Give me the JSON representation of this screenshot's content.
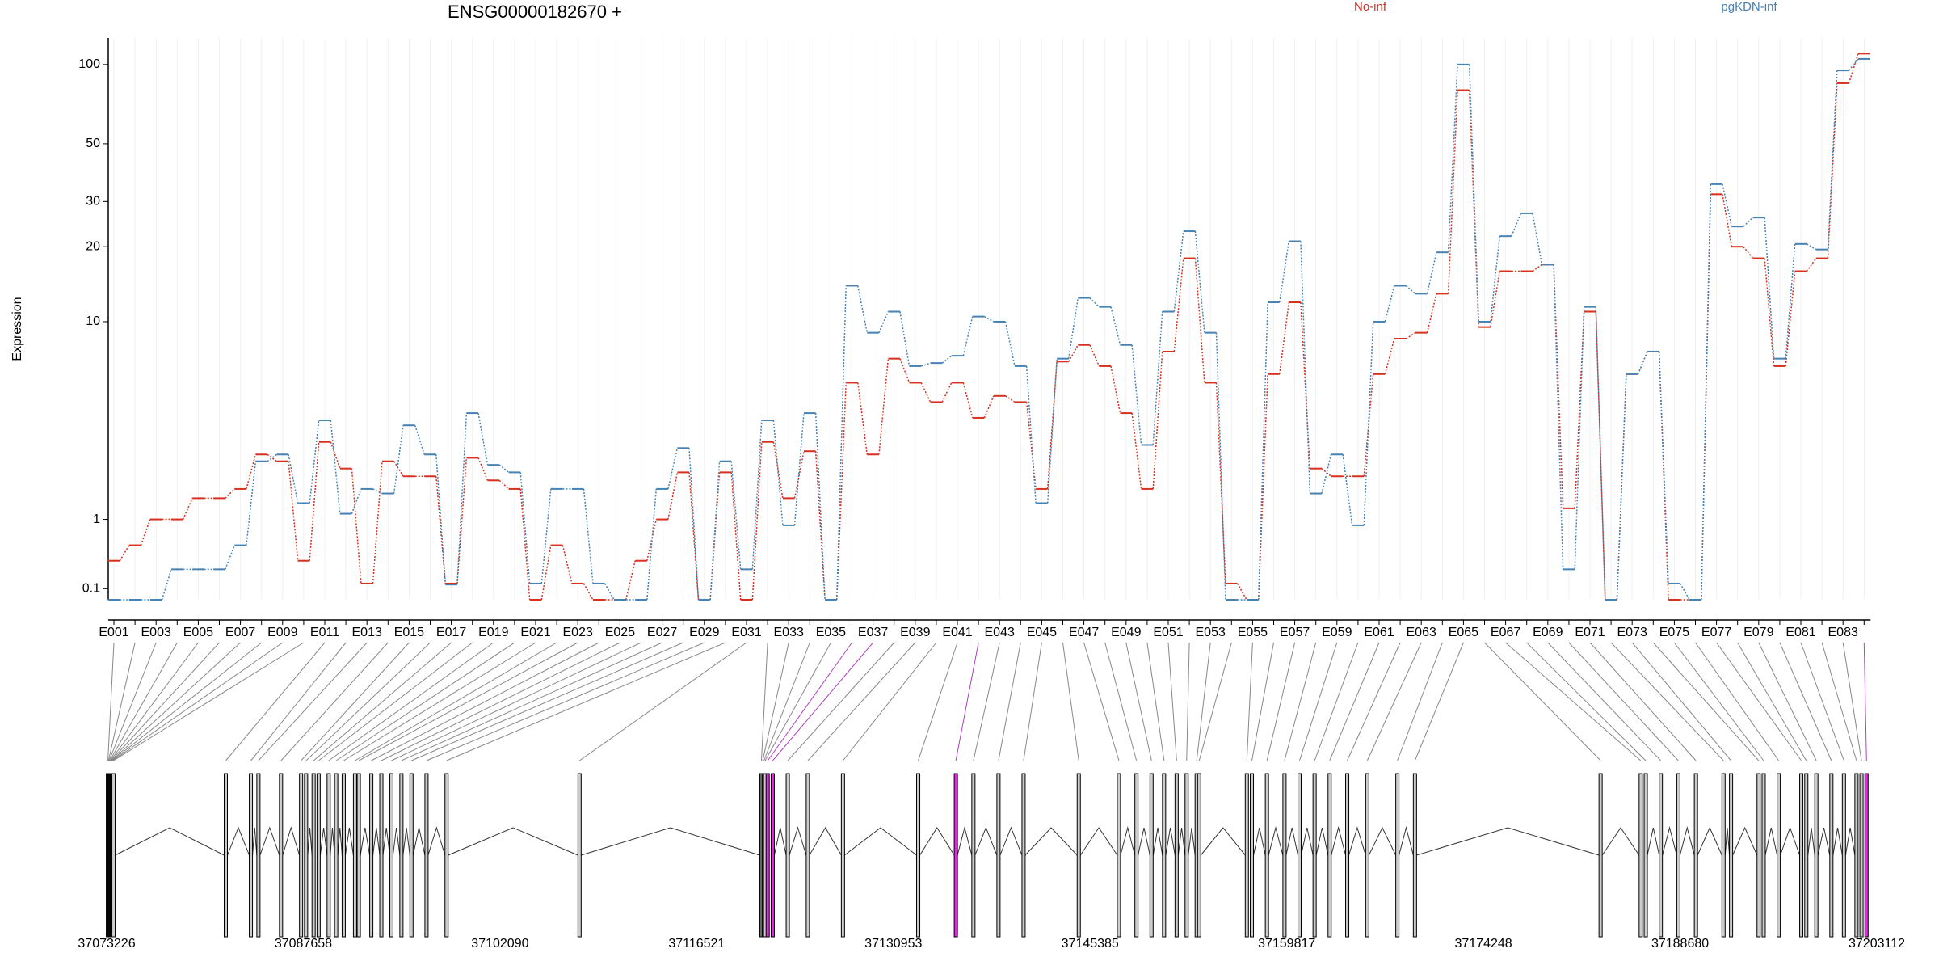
{
  "chart_data": {
    "type": "step",
    "title": "ENSG00000182670 +",
    "ylabel": "Expression",
    "yscale": "log1p",
    "ylim": [
      0,
      126
    ],
    "yticks": [
      0.1,
      1,
      10,
      20,
      30,
      50,
      100
    ],
    "grid": true,
    "categories": [
      "E001",
      null,
      "E003",
      null,
      "E005",
      null,
      "E007",
      null,
      "E009",
      null,
      "E011",
      null,
      "E013",
      null,
      "E015",
      null,
      "E017",
      null,
      "E019",
      null,
      "E021",
      null,
      "E023",
      null,
      "E025",
      null,
      "E027",
      null,
      "E029",
      null,
      "E031",
      null,
      "E033",
      null,
      "E035",
      null,
      "E037",
      null,
      "E039",
      null,
      "E041",
      null,
      "E043",
      null,
      "E045",
      null,
      "E047",
      null,
      "E049",
      null,
      "E051",
      null,
      "E053",
      null,
      "E055",
      null,
      "E057",
      null,
      "E059",
      null,
      "E061",
      null,
      "E063",
      null,
      "E065",
      null,
      "E067",
      null,
      "E069",
      null,
      "E071",
      null,
      "E073",
      null,
      "E075",
      null,
      "E077",
      null,
      "E079",
      null,
      "E081",
      null,
      "E083",
      null
    ],
    "series": [
      {
        "name": "No-inf",
        "color": "#d7301f",
        "values": [
          0.4,
          0.6,
          1.0,
          1.0,
          1.4,
          1.4,
          1.6,
          2.5,
          2.3,
          0.4,
          2.9,
          2.1,
          0.15,
          2.3,
          1.9,
          1.9,
          0.15,
          2.4,
          1.8,
          1.6,
          0,
          0.6,
          0.15,
          0,
          0,
          0.4,
          1.0,
          2.0,
          0,
          2.0,
          0,
          2.9,
          1.4,
          2.6,
          0,
          5.5,
          2.5,
          7.0,
          5.5,
          4.5,
          5.5,
          3.8,
          4.8,
          4.5,
          1.6,
          6.8,
          8.0,
          6.5,
          4.0,
          1.6,
          7.5,
          18,
          5.5,
          0.15,
          0,
          6,
          12,
          2.1,
          1.9,
          1.9,
          6,
          8.5,
          9,
          13,
          80,
          9.5,
          16,
          16,
          17,
          1.2,
          11,
          0,
          6,
          7.5,
          0,
          0,
          32,
          20,
          18,
          6.5,
          16,
          18,
          85,
          110
        ]
      },
      {
        "name": "pgKDN-inf",
        "color": "#4682b4",
        "values": [
          0,
          0,
          0,
          0.3,
          0.3,
          0.3,
          0.6,
          2.3,
          2.5,
          1.3,
          3.7,
          1.1,
          1.6,
          1.5,
          3.5,
          2.5,
          0.14,
          4,
          2.2,
          2.0,
          0.15,
          1.6,
          1.6,
          0.15,
          0,
          0,
          1.6,
          2.7,
          0,
          2.3,
          0.3,
          3.7,
          0.9,
          4,
          0,
          14,
          9,
          11,
          6.5,
          6.7,
          7.2,
          10.5,
          10,
          6.5,
          1.3,
          7,
          12.5,
          11.5,
          8,
          2.8,
          11,
          23,
          9,
          0,
          0,
          12,
          21,
          1.5,
          2.5,
          0.9,
          10,
          14,
          13,
          19,
          100,
          10,
          22,
          27,
          17,
          0.3,
          11.5,
          0,
          6,
          7.5,
          0.15,
          0,
          35,
          24,
          26,
          7,
          20.5,
          19.5,
          95,
          105
        ]
      }
    ]
  },
  "gene_model": {
    "xlim": [
      37073226,
      37203112
    ],
    "xticks": [
      37073226,
      37087658,
      37102090,
      37116521,
      37130953,
      37145385,
      37159817,
      37174248,
      37188680,
      37203112
    ],
    "exon_positions": [
      37073318,
      37073364,
      37073410,
      37073456,
      37073502,
      37073548,
      37073594,
      37073640,
      37073686,
      37073732,
      37081970,
      37083811,
      37084363,
      37086020,
      37087492,
      37087860,
      37088413,
      37088781,
      37089517,
      37090069,
      37090622,
      37091450,
      37091726,
      37092646,
      37093383,
      37094119,
      37094855,
      37095592,
      37096696,
      37098169,
      37107925,
      37121271,
      37121363,
      37121455,
      37121547,
      37121731,
      37122099,
      37123204,
      37124676,
      37127253,
      37132776,
      37135537,
      37136826,
      37138666,
      37140507,
      37144557,
      37147502,
      37148791,
      37149895,
      37150816,
      37151736,
      37152472,
      37153209,
      37153393,
      37156890,
      37157259,
      37158363,
      37159652,
      37160756,
      37161861,
      37162965,
      37164254,
      37165726,
      37167935,
      37169224,
      37182846,
      37185791,
      37186159,
      37187264,
      37188552,
      37189841,
      37191866,
      37192418,
      37194443,
      37194811,
      37195915,
      37197572,
      37197940,
      37198677,
      37199781,
      37200701,
      37201622,
      37201990,
      37202358
    ],
    "exon_colors": [
      "#cccccc",
      "#cccccc",
      "#cccccc",
      "#cccccc",
      "#cccccc",
      "#cccccc",
      "#cccccc",
      "#cccccc",
      "#cccccc",
      "#cccccc",
      "#cccccc",
      "#cccccc",
      "#cccccc",
      "#cccccc",
      "#cccccc",
      "#cccccc",
      "#cccccc",
      "#cccccc",
      "#cccccc",
      "#cccccc",
      "#cccccc",
      "#cccccc",
      "#cccccc",
      "#cccccc",
      "#cccccc",
      "#cccccc",
      "#cccccc",
      "#cccccc",
      "#cccccc",
      "#cccccc",
      "#cccccc",
      "#cccccc",
      "#cccccc",
      "#cccccc",
      "#cccccc",
      "#ee22ee",
      "#ee22ee",
      "#cccccc",
      "#cccccc",
      "#cccccc",
      "#cccccc",
      "#ee22ee",
      "#cccccc",
      "#cccccc",
      "#cccccc",
      "#cccccc",
      "#cccccc",
      "#cccccc",
      "#cccccc",
      "#cccccc",
      "#cccccc",
      "#cccccc",
      "#cccccc",
      "#cccccc",
      "#cccccc",
      "#cccccc",
      "#cccccc",
      "#cccccc",
      "#cccccc",
      "#cccccc",
      "#cccccc",
      "#cccccc",
      "#cccccc",
      "#cccccc",
      "#cccccc",
      "#cccccc",
      "#cccccc",
      "#cccccc",
      "#cccccc",
      "#cccccc",
      "#cccccc",
      "#cccccc",
      "#cccccc",
      "#cccccc",
      "#cccccc",
      "#cccccc",
      "#cccccc",
      "#cccccc",
      "#cccccc",
      "#cccccc",
      "#cccccc",
      "#cccccc",
      "#cccccc",
      "#ee22ee"
    ]
  }
}
